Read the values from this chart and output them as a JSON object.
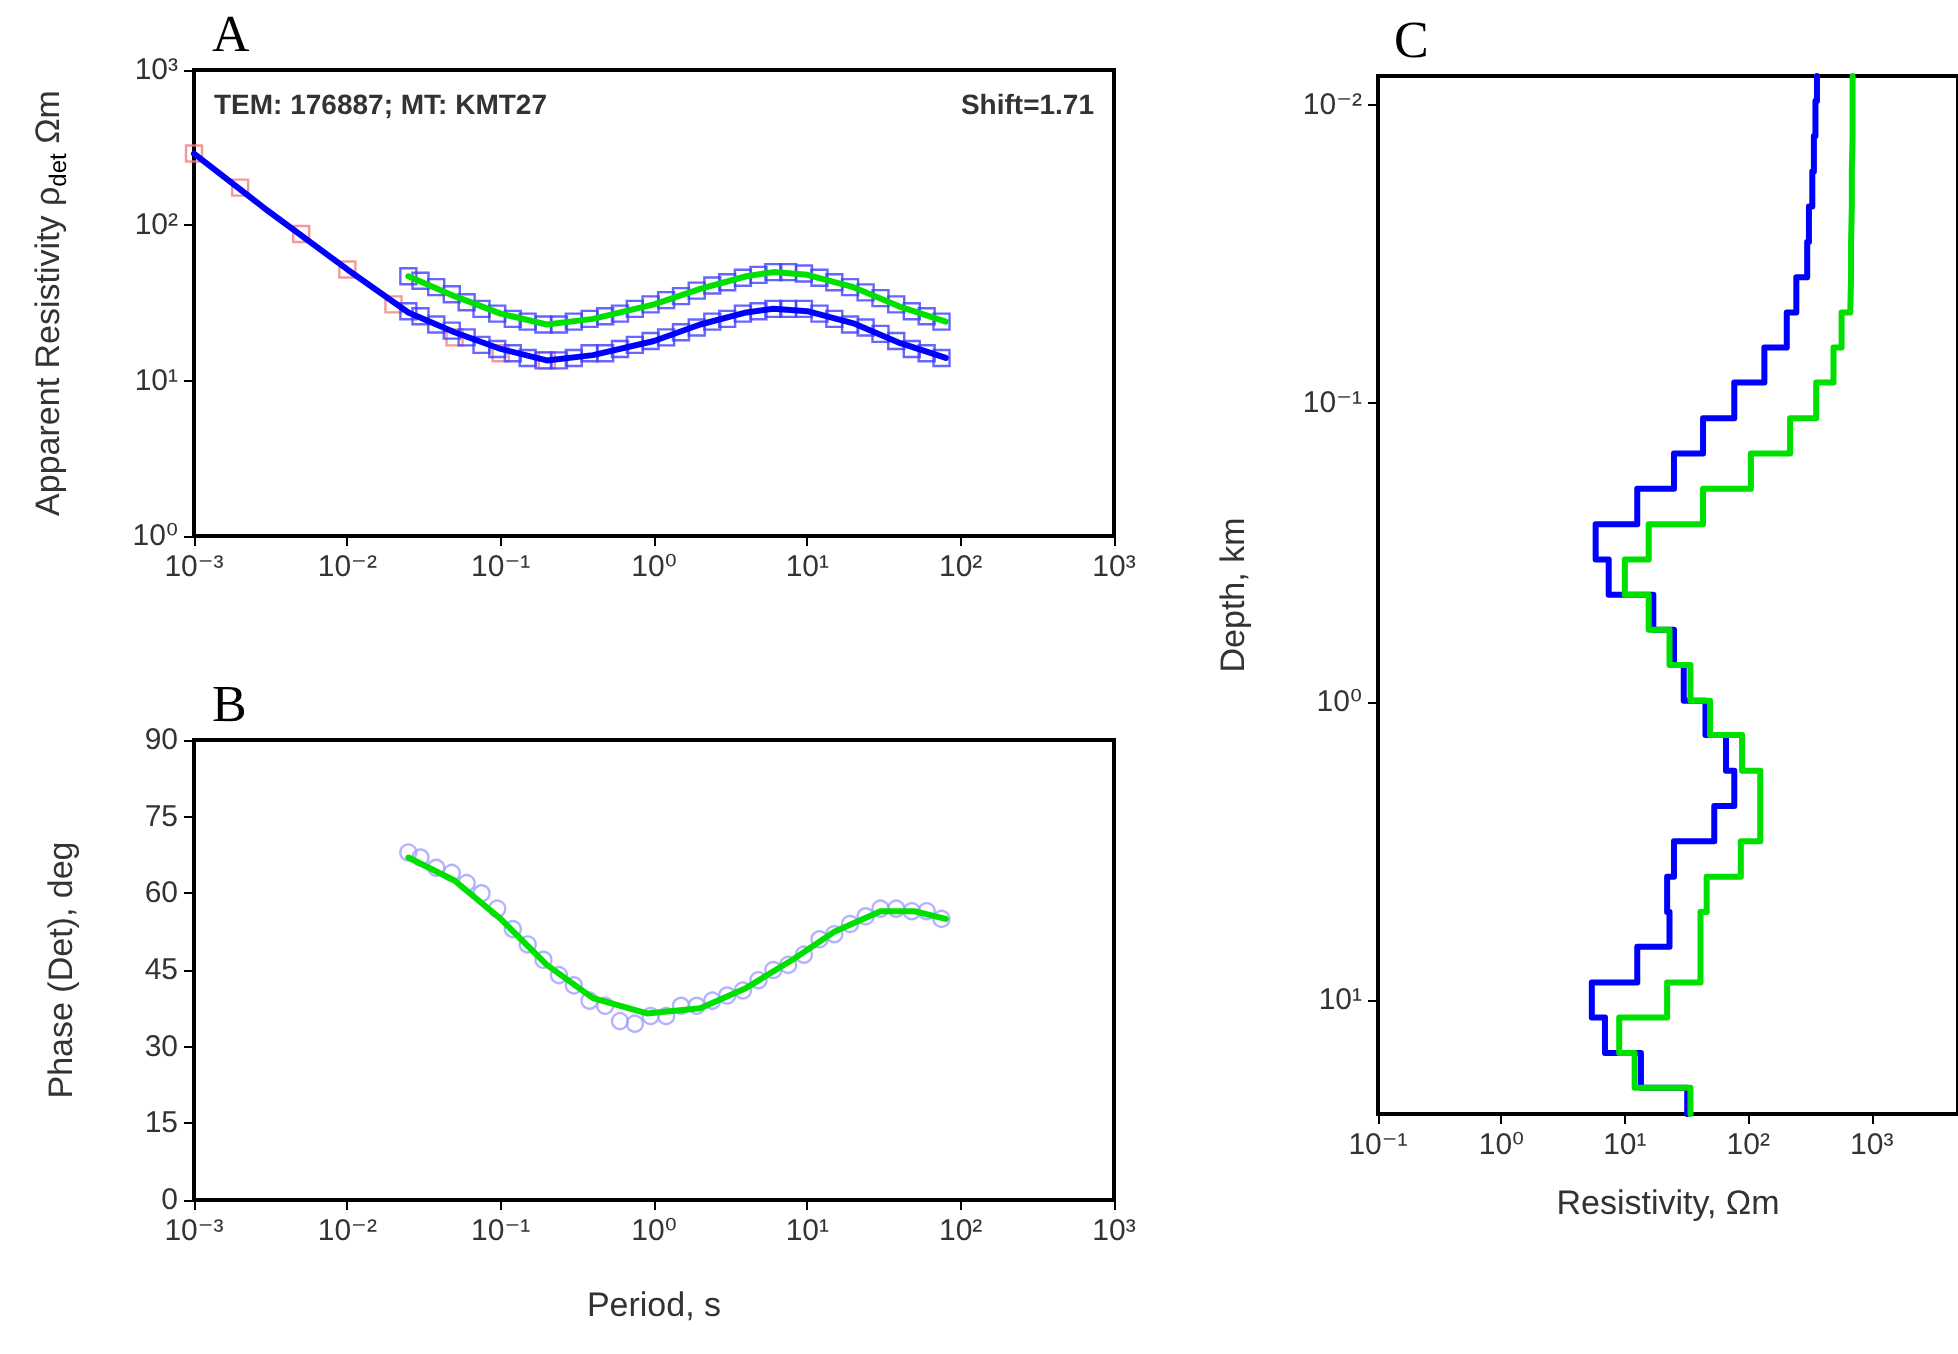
{
  "chart_data": [
    {
      "type": "line",
      "title": "A",
      "ylabel": "Apparent Resistivity ρ$_{det}$ Ωm",
      "log": "xy",
      "grid": false,
      "annotations": [
        "TEM: 176887; MT: KMT27",
        "Shift=1.71"
      ],
      "xlim": [
        0.001,
        1000
      ],
      "xticks": [
        {
          "value": 0.001,
          "label": "10⁻³"
        },
        {
          "value": 0.01,
          "label": "10⁻²"
        },
        {
          "value": 0.1,
          "label": "10⁻¹"
        },
        {
          "value": 1,
          "label": "10⁰"
        },
        {
          "value": 10,
          "label": "10¹"
        },
        {
          "value": 100,
          "label": "10²"
        },
        {
          "value": 1000,
          "label": "10³"
        }
      ],
      "ylim": [
        1,
        1000
      ],
      "yticks": [
        {
          "value": 1,
          "label": "10⁰"
        },
        {
          "value": 10,
          "label": "10¹"
        },
        {
          "value": 100,
          "label": "10²"
        },
        {
          "value": 1000,
          "label": "10³"
        }
      ],
      "series": [
        {
          "type": "scatter",
          "marker": "square",
          "color": "#f08080",
          "x": [
            0.001,
            0.002,
            0.005,
            0.01,
            0.02,
            0.05,
            0.1,
            0.2
          ],
          "values": [
            290,
            175,
            88,
            52,
            31,
            19,
            15,
            13.5
          ]
        },
        {
          "type": "scatter",
          "marker": "square",
          "color": "#4040ff",
          "x": [
            0.025,
            0.03,
            0.038,
            0.048,
            0.06,
            0.075,
            0.095,
            0.12,
            0.15,
            0.19,
            0.24,
            0.3,
            0.38,
            0.48,
            0.6,
            0.75,
            0.95,
            1.2,
            1.5,
            1.9,
            2.4,
            3,
            3.8,
            4.8,
            6,
            7.5,
            9.5,
            12,
            15,
            19,
            24,
            30,
            38,
            48,
            60,
            75
          ],
          "values": [
            47,
            44,
            40,
            36,
            32,
            29,
            27,
            25,
            24,
            23,
            23,
            24,
            25,
            26,
            27,
            29,
            31,
            33,
            35,
            38,
            41,
            43,
            46,
            48,
            50,
            50,
            49,
            46,
            43,
            40,
            37,
            34,
            31,
            28,
            26,
            24
          ]
        },
        {
          "marker": "none",
          "color": "#00e000",
          "x": [
            0.025,
            0.05,
            0.1,
            0.2,
            0.4,
            1,
            2,
            4,
            6,
            10,
            20,
            40,
            80
          ],
          "values": [
            47,
            35,
            27,
            23,
            25,
            31,
            39,
            47,
            50,
            48,
            40,
            30,
            24
          ]
        },
        {
          "type": "scatter",
          "marker": "square",
          "color": "#4040ff",
          "x": [
            0.025,
            0.03,
            0.038,
            0.048,
            0.06,
            0.075,
            0.095,
            0.12,
            0.15,
            0.19,
            0.24,
            0.3,
            0.38,
            0.48,
            0.6,
            0.75,
            0.95,
            1.2,
            1.5,
            1.9,
            2.4,
            3,
            3.8,
            4.8,
            6,
            7.5,
            9.5,
            12,
            15,
            19,
            24,
            30,
            38,
            48,
            60,
            75
          ],
          "values": [
            28,
            26,
            23,
            21,
            19,
            17,
            16,
            15,
            14,
            13.5,
            13.5,
            14,
            15,
            15,
            16,
            17,
            18,
            19,
            20.5,
            22,
            24,
            25,
            27,
            28,
            29,
            29,
            29,
            27,
            25,
            23,
            22,
            20,
            18,
            16,
            15,
            14
          ]
        },
        {
          "marker": "none",
          "color": "#0000ff",
          "x": [
            0.001,
            0.003,
            0.01,
            0.025,
            0.05,
            0.1,
            0.2,
            0.4,
            1,
            2,
            4,
            6,
            10,
            20,
            40,
            80
          ],
          "values": [
            290,
            125,
            52,
            27.5,
            20.5,
            16,
            13.5,
            14.6,
            18,
            23,
            27.5,
            29,
            28,
            23.4,
            17.5,
            14
          ]
        }
      ]
    },
    {
      "type": "line",
      "title": "B",
      "xlabel": "Period, s",
      "ylabel": "Phase (Det), deg",
      "log": "x",
      "grid": false,
      "xlim": [
        0.001,
        1000
      ],
      "xticks": [
        {
          "value": 0.001,
          "label": "10⁻³"
        },
        {
          "value": 0.01,
          "label": "10⁻²"
        },
        {
          "value": 0.1,
          "label": "10⁻¹"
        },
        {
          "value": 1,
          "label": "10⁰"
        },
        {
          "value": 10,
          "label": "10¹"
        },
        {
          "value": 100,
          "label": "10²"
        },
        {
          "value": 1000,
          "label": "10³"
        }
      ],
      "ylim": [
        0,
        90
      ],
      "yticks": [
        0,
        15,
        30,
        45,
        60,
        75,
        90
      ],
      "series": [
        {
          "type": "scatter",
          "marker": "circle",
          "color": "#a0a0ff",
          "x": [
            0.025,
            0.03,
            0.038,
            0.048,
            0.06,
            0.075,
            0.095,
            0.12,
            0.15,
            0.19,
            0.24,
            0.3,
            0.38,
            0.48,
            0.6,
            0.75,
            0.95,
            1.2,
            1.5,
            1.9,
            2.4,
            3,
            3.8,
            4.8,
            6,
            7.5,
            9.5,
            12,
            15,
            19,
            24,
            30,
            38,
            48,
            60,
            75
          ],
          "values": [
            68,
            67,
            65,
            64,
            62,
            60,
            57,
            53,
            50,
            47,
            44,
            42,
            39,
            38,
            35,
            34.5,
            36,
            36,
            38,
            38,
            39,
            40,
            41,
            43,
            45,
            46,
            48,
            51,
            52,
            54,
            55.5,
            57,
            57,
            56.5,
            56.5,
            55
          ]
        },
        {
          "marker": "none",
          "color": "#00e000",
          "x": [
            0.025,
            0.05,
            0.1,
            0.2,
            0.4,
            0.9,
            2,
            4,
            8,
            15,
            30,
            50,
            80
          ],
          "values": [
            67,
            62.5,
            55,
            46,
            39.5,
            36.5,
            37.5,
            41.5,
            47,
            52.5,
            56.5,
            56.5,
            55
          ]
        }
      ]
    },
    {
      "type": "line",
      "title": "C",
      "xlabel": "Resistivity, Ωm",
      "ylabel": "Depth, km",
      "log": "xy",
      "grid": false,
      "xlim": [
        0.1,
        5000
      ],
      "xticks": [
        {
          "value": 0.1,
          "label": "10⁻¹"
        },
        {
          "value": 1,
          "label": "10⁰"
        },
        {
          "value": 10,
          "label": "10¹"
        },
        {
          "value": 100,
          "label": "10²"
        },
        {
          "value": 1000,
          "label": "10³"
        }
      ],
      "ylim": [
        24,
        0.008
      ],
      "yticks": [
        {
          "value": 0.01,
          "label": "10⁻²"
        },
        {
          "value": 0.1,
          "label": "10⁻¹"
        },
        {
          "value": 1,
          "label": "10⁰"
        },
        {
          "value": 10,
          "label": "10¹"
        }
      ],
      "series": [
        {
          "marker": "none",
          "color": "#0000ff",
          "x": [
            360,
            360,
            350,
            350,
            340,
            340,
            330,
            330,
            310,
            310,
            300,
            300,
            245,
            245,
            205,
            205,
            135,
            135,
            77,
            77,
            43,
            43,
            25,
            25,
            12.6,
            12.6,
            5.8,
            5.8,
            7.4,
            7.4,
            17,
            17,
            25,
            25,
            30,
            30,
            45,
            45,
            66,
            66,
            77,
            77,
            53,
            53,
            25,
            25,
            22,
            22,
            23,
            23,
            12.6,
            12.6,
            5.4,
            5.4,
            6.9,
            6.9,
            13.5,
            13.5,
            32,
            32
          ],
          "values": [
            0.008,
            0.0097,
            0.0097,
            0.0127,
            0.0127,
            0.0167,
            0.0167,
            0.0219,
            0.0219,
            0.0288,
            0.0288,
            0.0378,
            0.0378,
            0.0496,
            0.0496,
            0.065,
            0.065,
            0.085,
            0.085,
            0.112,
            0.112,
            0.147,
            0.147,
            0.193,
            0.193,
            0.254,
            0.254,
            0.333,
            0.333,
            0.437,
            0.437,
            0.573,
            0.573,
            0.752,
            0.752,
            0.99,
            0.99,
            1.29,
            1.29,
            1.7,
            1.7,
            2.23,
            2.23,
            2.93,
            2.93,
            3.85,
            3.85,
            5.05,
            5.05,
            6.6,
            6.6,
            8.7,
            8.7,
            11.4,
            11.4,
            15,
            15,
            19.6,
            19.6,
            24
          ]
        },
        {
          "marker": "none",
          "color": "#00e000",
          "x": [
            700,
            700,
            700,
            700,
            690,
            690,
            690,
            690,
            680,
            680,
            680,
            680,
            670,
            670,
            570,
            570,
            490,
            490,
            355,
            355,
            218,
            218,
            105,
            105,
            43,
            43,
            15.6,
            15.6,
            10,
            10,
            15.6,
            15.6,
            23,
            23,
            34,
            34,
            49,
            49,
            89,
            89,
            125,
            125,
            125,
            125,
            87,
            87,
            46,
            46,
            41,
            41,
            41,
            41,
            22,
            22,
            9,
            9,
            12,
            12,
            34,
            34
          ],
          "values": [
            0.008,
            0.0097,
            0.0097,
            0.0127,
            0.0127,
            0.0167,
            0.0167,
            0.0219,
            0.0219,
            0.0288,
            0.0288,
            0.0378,
            0.0378,
            0.0496,
            0.0496,
            0.065,
            0.065,
            0.085,
            0.085,
            0.112,
            0.112,
            0.147,
            0.147,
            0.193,
            0.193,
            0.254,
            0.254,
            0.333,
            0.333,
            0.437,
            0.437,
            0.573,
            0.573,
            0.752,
            0.752,
            0.99,
            0.99,
            1.29,
            1.29,
            1.7,
            1.7,
            2.23,
            2.23,
            2.93,
            2.93,
            3.85,
            3.85,
            5.05,
            5.05,
            6.6,
            6.6,
            8.7,
            8.7,
            11.4,
            11.4,
            15,
            15,
            19.6,
            19.6,
            24
          ]
        }
      ]
    }
  ]
}
